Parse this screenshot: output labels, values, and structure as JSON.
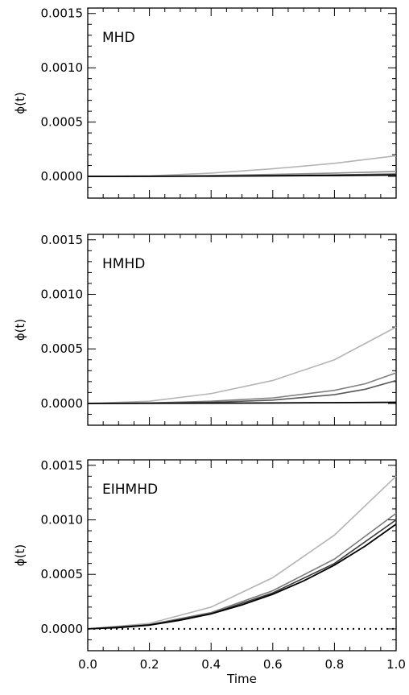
{
  "chart_data": [
    {
      "type": "line",
      "label": "MHD",
      "ylabel": "ϕ(t)",
      "xlabel": "",
      "xlim": [
        0.0,
        1.0
      ],
      "ylim": [
        -0.0002,
        0.00155
      ],
      "yticks": [
        "0.0000",
        "0.0005",
        "0.0010",
        "0.0015"
      ],
      "xticks": [],
      "series": [
        {
          "color": "#b4b4b4",
          "x": [
            0,
            0.2,
            0.4,
            0.6,
            0.8,
            1.0
          ],
          "values": [
            0,
            5e-06,
            3e-05,
            7e-05,
            0.00012,
            0.00019
          ]
        },
        {
          "color": "#909090",
          "x": [
            0,
            0.2,
            0.4,
            0.6,
            0.8,
            1.0
          ],
          "values": [
            0,
            2e-06,
            8e-06,
            1.8e-05,
            3e-05,
            4.5e-05
          ]
        },
        {
          "color": "#5a5a5a",
          "x": [
            0,
            0.2,
            0.4,
            0.6,
            0.8,
            1.0
          ],
          "values": [
            0,
            1e-06,
            4e-06,
            8e-06,
            1.4e-05,
            2.2e-05
          ]
        },
        {
          "color": "#000000",
          "x": [
            0,
            0.2,
            0.4,
            0.6,
            0.8,
            1.0
          ],
          "values": [
            0,
            1e-06,
            2e-06,
            5e-06,
            8e-06,
            1.2e-05
          ]
        }
      ]
    },
    {
      "type": "line",
      "label": "HMHD",
      "ylabel": "ϕ(t)",
      "xlabel": "",
      "xlim": [
        0.0,
        1.0
      ],
      "ylim": [
        -0.0002,
        0.00155
      ],
      "yticks": [
        "0.0000",
        "0.0005",
        "0.0010",
        "0.0015"
      ],
      "xticks": [],
      "series": [
        {
          "color": "#b4b4b4",
          "x": [
            0,
            0.2,
            0.4,
            0.6,
            0.8,
            1.0
          ],
          "values": [
            0,
            2e-05,
            9e-05,
            0.00021,
            0.0004,
            0.0007
          ]
        },
        {
          "color": "#808080",
          "x": [
            0,
            0.2,
            0.4,
            0.6,
            0.8,
            0.9,
            1.0
          ],
          "values": [
            0,
            5e-06,
            2e-05,
            5e-05,
            0.00012,
            0.00018,
            0.00028
          ]
        },
        {
          "color": "#585858",
          "x": [
            0,
            0.2,
            0.4,
            0.6,
            0.8,
            0.9,
            1.0
          ],
          "values": [
            0,
            2e-06,
            1e-05,
            3e-05,
            8e-05,
            0.00013,
            0.00021
          ]
        },
        {
          "color": "#000000",
          "x": [
            0,
            0.2,
            0.4,
            0.6,
            0.8,
            1.0
          ],
          "values": [
            0,
            1e-06,
            2e-06,
            4e-06,
            7e-06,
            1e-05
          ]
        }
      ]
    },
    {
      "type": "line",
      "label": "EIHMHD",
      "ylabel": "ϕ(t)",
      "xlabel": "Time",
      "xlim": [
        0.0,
        1.0
      ],
      "ylim": [
        -0.0002,
        0.00155
      ],
      "yticks": [
        "0.0000",
        "0.0005",
        "0.0010",
        "0.0015"
      ],
      "xticks": [
        "0.0",
        "0.2",
        "0.4",
        "0.6",
        "0.8",
        "1.0"
      ],
      "zero_line": "dotted",
      "series": [
        {
          "color": "#b4b4b4",
          "x": [
            0,
            0.2,
            0.4,
            0.6,
            0.8,
            1.0
          ],
          "values": [
            0,
            5e-05,
            0.0002,
            0.00047,
            0.00086,
            0.0014
          ]
        },
        {
          "color": "#7a7a7a",
          "x": [
            0,
            0.2,
            0.4,
            0.6,
            0.8,
            1.0
          ],
          "values": [
            0,
            4e-05,
            0.00015,
            0.00035,
            0.00064,
            0.00106
          ]
        },
        {
          "color": "#3a3a3a",
          "x": [
            0,
            0.2,
            0.4,
            0.6,
            0.8,
            1.0
          ],
          "values": [
            0,
            3.5e-05,
            0.00014,
            0.00033,
            0.0006,
            0.001
          ]
        },
        {
          "color": "#000000",
          "x": [
            0,
            0.1,
            0.2,
            0.3,
            0.4,
            0.5,
            0.6,
            0.7,
            0.8,
            0.9,
            1.0
          ],
          "values": [
            0,
            1.2e-05,
            3.5e-05,
            8e-05,
            0.000138,
            0.00022,
            0.000318,
            0.00044,
            0.000585,
            0.00076,
            0.00096
          ]
        }
      ]
    }
  ]
}
